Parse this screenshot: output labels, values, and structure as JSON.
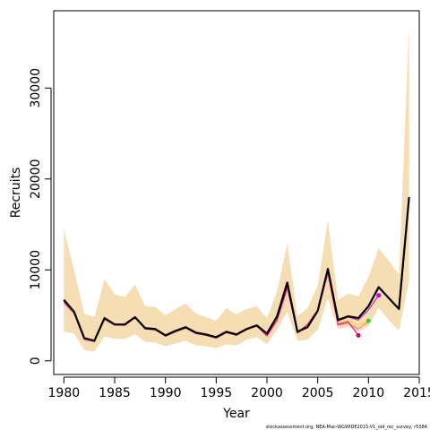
{
  "footnote": "stockassessment.org, NEA-Mac-WGWIDE2015-V1_old_rec_survey, r5384",
  "colors": {
    "band": "#f5deb3",
    "main_line": "#000000",
    "retro_1": "#ff69b4",
    "retro_2": "#cc0066",
    "retro_3": "#ffd700",
    "retro_4": "#32cd32",
    "retro_5": "#cc00cc"
  },
  "chart_data": {
    "type": "line",
    "title": "",
    "xlabel": "Year",
    "ylabel": "Recruits",
    "xlim": [
      1979,
      2015
    ],
    "ylim": [
      -1500,
      38500
    ],
    "xticks": [
      1980,
      1985,
      1990,
      1995,
      2000,
      2005,
      2010,
      2015
    ],
    "yticks": [
      0,
      10000,
      20000,
      30000
    ],
    "grid": false,
    "legend": "none",
    "band": {
      "x": [
        1980,
        1981,
        1982,
        1983,
        1984,
        1985,
        1986,
        1987,
        1988,
        1989,
        1990,
        1991,
        1992,
        1993,
        1994,
        1995,
        1996,
        1997,
        1998,
        1999,
        2000,
        2001,
        2002,
        2003,
        2004,
        2005,
        2006,
        2007,
        2008,
        2009,
        2010,
        2011,
        2012,
        2013,
        2014
      ],
      "lower": [
        3200,
        3000,
        1200,
        1000,
        2700,
        2400,
        2400,
        2900,
        2100,
        2000,
        1600,
        1900,
        2200,
        1700,
        1600,
        1400,
        1800,
        1700,
        2300,
        2600,
        1800,
        3400,
        5400,
        2200,
        2300,
        3400,
        6900,
        3500,
        3700,
        3200,
        3800,
        5800,
        4500,
        3300,
        8800
      ],
      "upper": [
        14500,
        10000,
        5200,
        4800,
        9000,
        7300,
        7000,
        8400,
        6000,
        5900,
        5000,
        5700,
        6300,
        5200,
        4800,
        4400,
        5800,
        5100,
        5700,
        6000,
        4700,
        7700,
        12900,
        4900,
        5800,
        8300,
        15400,
        6700,
        7400,
        7100,
        9200,
        12400,
        11000,
        9500,
        36900
      ]
    },
    "series": [
      {
        "color": "#000000",
        "x": [
          1980,
          1981,
          1982,
          1983,
          1984,
          1985,
          1986,
          1987,
          1988,
          1989,
          1990,
          1991,
          1992,
          1993,
          1994,
          1995,
          1996,
          1997,
          1998,
          1999,
          2000,
          2001,
          2002,
          2003,
          2004,
          2005,
          2006,
          2007,
          2008,
          2009,
          2010,
          2011,
          2012,
          2013,
          2014
        ],
        "values": [
          6700,
          5400,
          2500,
          2200,
          4700,
          4000,
          4000,
          4800,
          3600,
          3500,
          2800,
          3300,
          3700,
          3100,
          2900,
          2600,
          3200,
          2900,
          3500,
          3900,
          3000,
          4900,
          8600,
          3200,
          3700,
          5500,
          10100,
          4500,
          4900,
          4700,
          6000,
          8100,
          6900,
          5700,
          18000
        ]
      },
      {
        "color": "#ff69b4",
        "x": [
          1980,
          1981,
          1982,
          1983,
          1984,
          1985,
          1986,
          1987,
          1988,
          1989,
          1990,
          1991,
          1992,
          1993,
          1994,
          1995,
          1996,
          1997,
          1998,
          1999,
          2000,
          2001,
          2002,
          2003,
          2004,
          2005,
          2006,
          2007,
          2008,
          2009,
          2010
        ],
        "values": [
          6300,
          5200,
          2300,
          2100,
          4500,
          3900,
          3900,
          4700,
          3500,
          3400,
          2700,
          3200,
          3600,
          3000,
          2800,
          2500,
          3100,
          2800,
          3400,
          3800,
          2700,
          4400,
          7900,
          3000,
          3800,
          5400,
          9500,
          3900,
          4100,
          3500,
          4300
        ]
      },
      {
        "color": "#cc0066",
        "x": [
          1980,
          1981,
          1982,
          1983,
          1984,
          1985,
          1986,
          1987,
          1988,
          1989,
          1990,
          1991,
          1992,
          1993,
          1994,
          1995,
          1996,
          1997,
          1998,
          1999,
          2000,
          2001,
          2002,
          2003,
          2004,
          2005,
          2006,
          2007,
          2008,
          2009
        ],
        "values": [
          6500,
          5300,
          2400,
          2200,
          4600,
          4000,
          3900,
          4800,
          3500,
          3400,
          2700,
          3200,
          3600,
          3000,
          2800,
          2500,
          3100,
          2800,
          3500,
          3800,
          2800,
          4500,
          8100,
          3100,
          4000,
          5600,
          9800,
          4000,
          4300,
          2800
        ]
      },
      {
        "color": "#ffd700",
        "x": [
          2005,
          2006,
          2007,
          2008,
          2009,
          2010
        ],
        "values": [
          5700,
          10300,
          4300,
          4500,
          3900,
          4400
        ]
      },
      {
        "color": "#cc00cc",
        "x": [
          2005,
          2006,
          2007,
          2008,
          2009,
          2010,
          2011
        ],
        "values": [
          5600,
          10000,
          4400,
          4800,
          4500,
          5600,
          7200
        ]
      }
    ],
    "end_points": [
      {
        "x": 2009,
        "y": 2800,
        "color": "#cc0066"
      },
      {
        "x": 2010,
        "y": 4400,
        "color": "#32cd32"
      },
      {
        "x": 2011,
        "y": 7200,
        "color": "#cc00cc"
      }
    ]
  }
}
